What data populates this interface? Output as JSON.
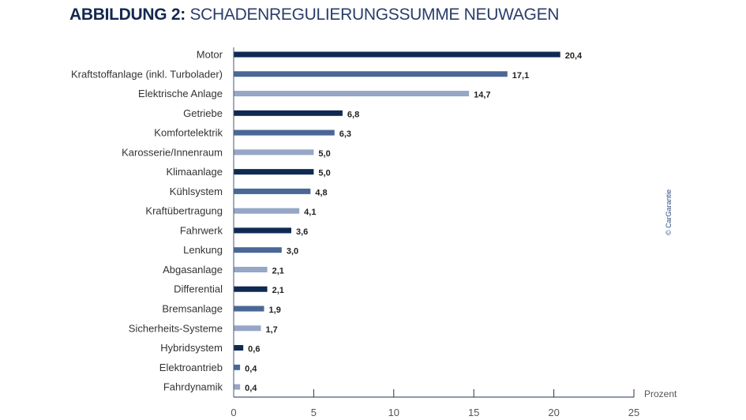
{
  "chart_data": {
    "type": "bar",
    "orientation": "horizontal",
    "title_bold": "ABBILDUNG 2:",
    "title": "SCHADENREGULIERUNGSSUMME NEUWAGEN",
    "xlabel": "Prozent",
    "ylabel": "",
    "xlim": [
      0,
      25
    ],
    "xticks": [
      "0",
      "5",
      "10",
      "15",
      "20",
      "25"
    ],
    "grid": false,
    "credit": "© CarGarantie",
    "categories": [
      "Motor",
      "Kraftstoffanlage (inkl. Turbolader)",
      "Elektrische Anlage",
      "Getriebe",
      "Komfortelektrik",
      "Karosserie/Innenraum",
      "Klimaanlage",
      "Kühlsystem",
      "Kraftübertragung",
      "Fahrwerk",
      "Lenkung",
      "Abgasanlage",
      "Differential",
      "Bremsanlage",
      "Sicherheits-Systeme",
      "Hybridsystem",
      "Elektroantrieb",
      "Fahrdynamik"
    ],
    "values": [
      20.4,
      17.1,
      14.7,
      6.8,
      6.3,
      5.0,
      5.0,
      4.8,
      4.1,
      3.6,
      3.0,
      2.1,
      2.1,
      1.9,
      1.7,
      0.6,
      0.4,
      0.4
    ],
    "value_labels": [
      "20,4",
      "17,1",
      "14,7",
      "6,8",
      "6,3",
      "5,0",
      "5,0",
      "4,8",
      "4,1",
      "3,6",
      "3,0",
      "2,1",
      "2,1",
      "1,9",
      "1,7",
      "0,6",
      "0,4",
      "0,4"
    ],
    "colors": [
      "#0f2a52",
      "#4a6896",
      "#95a6c6"
    ]
  }
}
